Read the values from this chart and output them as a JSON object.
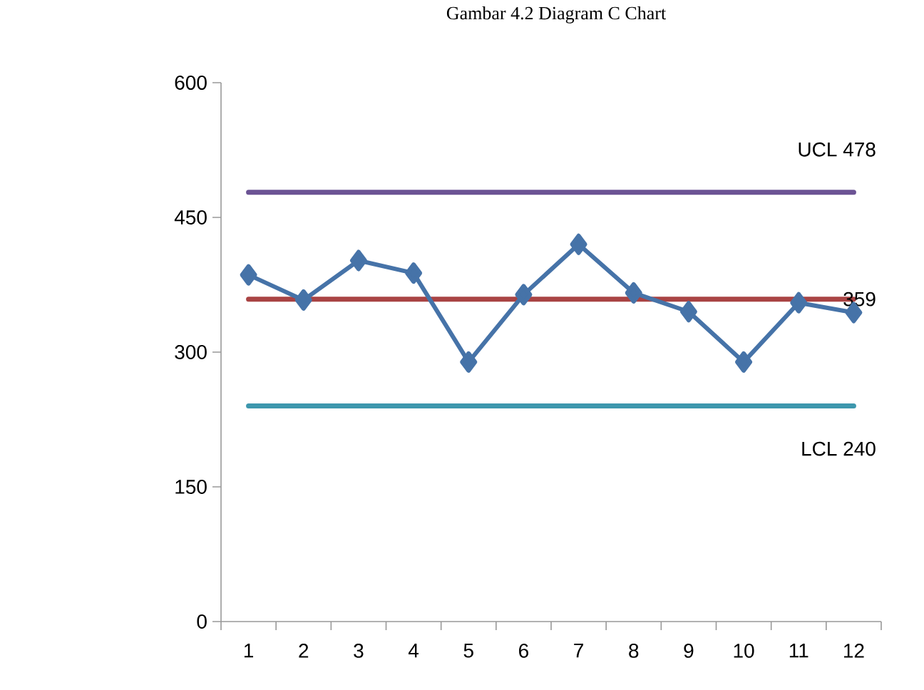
{
  "chart_data": {
    "type": "line",
    "title": "Gambar 4.2 Diagram C Chart",
    "categories": [
      "1",
      "2",
      "3",
      "4",
      "5",
      "6",
      "7",
      "8",
      "9",
      "10",
      "11",
      "12"
    ],
    "series": [
      {
        "color": "#4673a8",
        "values": [
          386,
          358,
          402,
          388,
          289,
          364,
          420,
          366,
          345,
          289,
          355,
          344
        ]
      }
    ],
    "marker": "diamond",
    "line_style": "solid",
    "ylim": [
      0,
      600
    ],
    "yticks": [
      0,
      150,
      300,
      450,
      600
    ],
    "grid": false,
    "ref_lines": [
      {
        "axis": "y",
        "value": 478,
        "label": "UCL 478",
        "color": "#6b5394"
      },
      {
        "axis": "y",
        "value": 359,
        "label": "359",
        "color": "#a94343"
      },
      {
        "axis": "y",
        "value": 240,
        "label": "LCL 240",
        "color": "#3d97ad"
      }
    ]
  }
}
